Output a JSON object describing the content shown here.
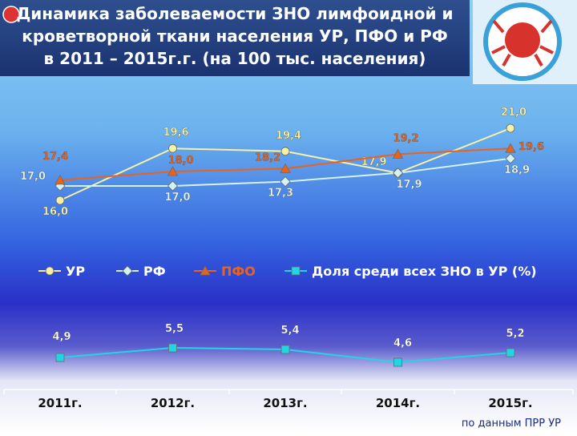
{
  "title": [
    "Динамика заболеваемости ЗНО лимфоидной и",
    "кроветворной ткани населения УР, ПФО и РФ",
    "в 2011 – 2015г.г. (на 100 тыс. населения)"
  ],
  "source": "по данным ПРР УР",
  "chart_data": {
    "type": "line",
    "categories": [
      "2011г.",
      "2012г.",
      "2013г.",
      "2014г.",
      "2015г."
    ],
    "series": [
      {
        "name": "УР",
        "color": "#f6f1a6",
        "marker": "circle",
        "values": [
          16.0,
          19.6,
          19.4,
          17.9,
          21.0
        ],
        "value_labels": [
          "16,0",
          "19,6",
          "19,4",
          "17,9",
          "21,0"
        ]
      },
      {
        "name": "РФ",
        "color": "#d4f2f0",
        "marker": "diamond",
        "values": [
          17.0,
          17.0,
          17.3,
          17.9,
          18.9
        ],
        "value_labels": [
          "17,0",
          "17,0",
          "17,3",
          "17,9",
          "18,9"
        ]
      },
      {
        "name": "ПФО",
        "color": "#e8641e",
        "marker": "triangle",
        "values": [
          17.4,
          18.0,
          18.2,
          19.2,
          19.6
        ],
        "value_labels": [
          "17,4",
          "18,0",
          "18,2",
          "19,2",
          "19,6"
        ]
      },
      {
        "name": "Доля среди всех ЗНО в УР (%)",
        "color": "#22d4e6",
        "marker": "square",
        "axis": "y2",
        "values": [
          4.9,
          5.5,
          5.4,
          4.6,
          5.2
        ],
        "value_labels": [
          "4,9",
          "5,5",
          "5,4",
          "4,6",
          "5,2"
        ]
      }
    ]
  }
}
